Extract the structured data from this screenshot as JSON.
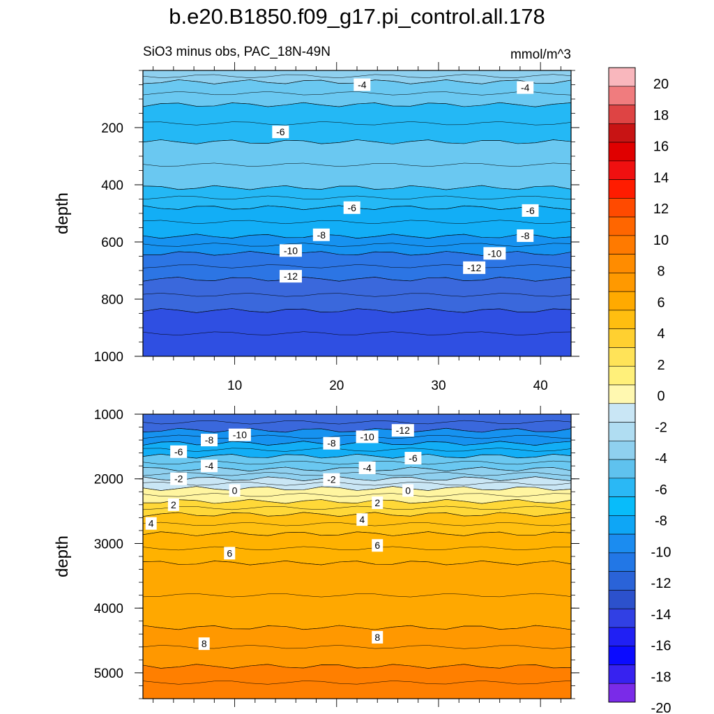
{
  "title": "b.e20.B1850.f09_g17.pi_control.all.178",
  "chart_data": [
    {
      "type": "contour",
      "panel": "upper",
      "subtitle": "SiO3 minus obs, PAC_18N-49N",
      "units": "mmol/m^3",
      "ylabel": "depth",
      "xlabel": "",
      "xlim": [
        1,
        43
      ],
      "ylim": [
        1000,
        0
      ],
      "x_ticks": [
        "10",
        "20",
        "30",
        "40"
      ],
      "y_ticks": [
        "200",
        "400",
        "600",
        "800",
        "1000"
      ],
      "bands": [
        {
          "top": 0,
          "bottom": 40,
          "value": -3
        },
        {
          "top": 40,
          "bottom": 120,
          "value": -5
        },
        {
          "top": 120,
          "bottom": 250,
          "value": -7
        },
        {
          "top": 250,
          "bottom": 410,
          "value": -5
        },
        {
          "top": 410,
          "bottom": 480,
          "value": -7
        },
        {
          "top": 480,
          "bottom": 580,
          "value": -9
        },
        {
          "top": 580,
          "bottom": 640,
          "value": -11
        },
        {
          "top": 640,
          "bottom": 730,
          "value": -13
        },
        {
          "top": 730,
          "bottom": 840,
          "value": -15
        },
        {
          "top": 840,
          "bottom": 1000,
          "value": -17
        }
      ],
      "contour_labels": [
        {
          "text": "-4",
          "x": 22.5,
          "depth": 50
        },
        {
          "text": "-4",
          "x": 38.5,
          "depth": 60
        },
        {
          "text": "-6",
          "x": 14.5,
          "depth": 215
        },
        {
          "text": "-6",
          "x": 21.5,
          "depth": 480
        },
        {
          "text": "-6",
          "x": 39.0,
          "depth": 490
        },
        {
          "text": "-8",
          "x": 18.5,
          "depth": 575
        },
        {
          "text": "-8",
          "x": 38.5,
          "depth": 578
        },
        {
          "text": "-10",
          "x": 15.5,
          "depth": 630
        },
        {
          "text": "-10",
          "x": 35.5,
          "depth": 640
        },
        {
          "text": "-12",
          "x": 15.5,
          "depth": 720
        },
        {
          "text": "-12",
          "x": 33.5,
          "depth": 690
        }
      ]
    },
    {
      "type": "contour",
      "panel": "lower",
      "ylabel": "depth",
      "xlabel": "",
      "xlim": [
        1,
        43
      ],
      "ylim": [
        5400,
        1000
      ],
      "y_ticks": [
        "1000",
        "2000",
        "3000",
        "4000",
        "5000"
      ],
      "bands": [
        {
          "top": 1000,
          "bottom": 1250,
          "value": -15
        },
        {
          "top": 1250,
          "bottom": 1450,
          "value": -11
        },
        {
          "top": 1450,
          "bottom": 1650,
          "value": -9
        },
        {
          "top": 1650,
          "bottom": 1850,
          "value": -5
        },
        {
          "top": 1850,
          "bottom": 2000,
          "value": -3
        },
        {
          "top": 2000,
          "bottom": 2150,
          "value": -1
        },
        {
          "top": 2150,
          "bottom": 2350,
          "value": 1
        },
        {
          "top": 2350,
          "bottom": 2550,
          "value": 3
        },
        {
          "top": 2550,
          "bottom": 2850,
          "value": 5
        },
        {
          "top": 2850,
          "bottom": 3300,
          "value": 6
        },
        {
          "top": 3300,
          "bottom": 4300,
          "value": 7
        },
        {
          "top": 4300,
          "bottom": 4900,
          "value": 8
        },
        {
          "top": 4900,
          "bottom": 5400,
          "value": 9
        }
      ],
      "contour_labels": [
        {
          "text": "-10",
          "x": 10.5,
          "depth": 1320
        },
        {
          "text": "-10",
          "x": 23.0,
          "depth": 1350
        },
        {
          "text": "-12",
          "x": 26.5,
          "depth": 1250
        },
        {
          "text": "-8",
          "x": 7.5,
          "depth": 1400
        },
        {
          "text": "-8",
          "x": 19.5,
          "depth": 1450
        },
        {
          "text": "-6",
          "x": 4.5,
          "depth": 1580
        },
        {
          "text": "-6",
          "x": 27.5,
          "depth": 1680
        },
        {
          "text": "-4",
          "x": 7.5,
          "depth": 1800
        },
        {
          "text": "-4",
          "x": 23.0,
          "depth": 1830
        },
        {
          "text": "-2",
          "x": 4.5,
          "depth": 2000
        },
        {
          "text": "-2",
          "x": 19.5,
          "depth": 2010
        },
        {
          "text": "0",
          "x": 10.0,
          "depth": 2180
        },
        {
          "text": "0",
          "x": 27.0,
          "depth": 2180
        },
        {
          "text": "2",
          "x": 4.0,
          "depth": 2400
        },
        {
          "text": "2",
          "x": 24.0,
          "depth": 2370
        },
        {
          "text": "4",
          "x": 1.8,
          "depth": 2690
        },
        {
          "text": "4",
          "x": 22.5,
          "depth": 2630
        },
        {
          "text": "6",
          "x": 9.5,
          "depth": 3150
        },
        {
          "text": "6",
          "x": 24.0,
          "depth": 3030
        },
        {
          "text": "8",
          "x": 7.0,
          "depth": 4550
        },
        {
          "text": "8",
          "x": 24.0,
          "depth": 4450
        }
      ]
    }
  ],
  "colorbar": {
    "tick_labels": [
      "20",
      "18",
      "16",
      "14",
      "12",
      "10",
      "8",
      "6",
      "4",
      "2",
      "0",
      "-2",
      "-4",
      "-6",
      "-8",
      "-10",
      "-12",
      "-14",
      "-16",
      "-18",
      "-20"
    ],
    "colors": [
      "#f9b7bd",
      "#f07c7e",
      "#de4444",
      "#c81414",
      "#e00000",
      "#f01010",
      "#ff1c00",
      "#ff4a00",
      "#ff6600",
      "#ff7a00",
      "#ff8c00",
      "#ff9900",
      "#ffaa00",
      "#ffbe10",
      "#ffd030",
      "#ffe358",
      "#fff07a",
      "#fff8b0",
      "#c9e6f5",
      "#b0ddf2",
      "#8fd0ef",
      "#5fc2ee",
      "#2ab8f5",
      "#08bcfa",
      "#0ea6f6",
      "#1b8cf0",
      "#2277e6",
      "#2a63d8",
      "#2c51cc",
      "#3140e4",
      "#2020f4",
      "#0b0bff",
      "#3722f0",
      "#7a2be8"
    ]
  }
}
